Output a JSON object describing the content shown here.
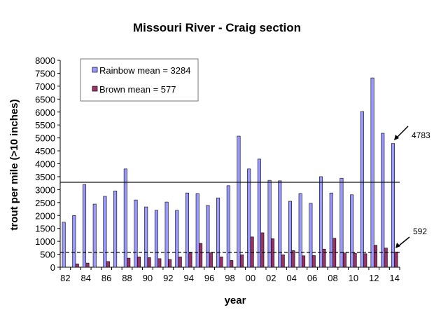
{
  "chart_data": {
    "type": "bar",
    "title": "Missouri River - Craig section",
    "xlabel": "year",
    "ylabel": "trout per mile (>10 inches)",
    "ylim": [
      0,
      8000
    ],
    "yticks": [
      0,
      500,
      1000,
      1500,
      2000,
      2500,
      3000,
      3500,
      4000,
      4500,
      5000,
      5500,
      6000,
      6500,
      7000,
      7500,
      8000
    ],
    "categories": [
      "82",
      "83",
      "84",
      "85",
      "86",
      "87",
      "88",
      "89",
      "90",
      "91",
      "92",
      "93",
      "94",
      "95",
      "96",
      "97",
      "98",
      "99",
      "00",
      "01",
      "02",
      "03",
      "04",
      "05",
      "06",
      "07",
      "08",
      "09",
      "10",
      "11",
      "12",
      "13",
      "14"
    ],
    "xtick_labels": [
      "82",
      "84",
      "86",
      "88",
      "90",
      "92",
      "94",
      "96",
      "98",
      "00",
      "02",
      "04",
      "06",
      "08",
      "10",
      "12",
      "14"
    ],
    "series": [
      {
        "name": "Rainbow",
        "color": "#9999ff",
        "values": [
          1740,
          2000,
          3200,
          2440,
          2740,
          2950,
          3800,
          2600,
          2330,
          2200,
          2520,
          2200,
          2870,
          2850,
          2390,
          2680,
          3150,
          5070,
          3800,
          4180,
          3360,
          3340,
          2550,
          2850,
          2470,
          3500,
          2870,
          3440,
          2800,
          6020,
          7320,
          5180,
          4783
        ]
      },
      {
        "name": "Brown",
        "color": "#993366",
        "values": [
          0,
          130,
          160,
          0,
          220,
          0,
          350,
          400,
          370,
          330,
          300,
          400,
          550,
          920,
          560,
          400,
          260,
          480,
          1170,
          1330,
          1100,
          480,
          640,
          440,
          450,
          700,
          1120,
          550,
          540,
          520,
          850,
          740,
          592
        ]
      }
    ],
    "reference_lines": [
      {
        "value": 3284,
        "style": "solid"
      },
      {
        "value": 577,
        "style": "dashed"
      }
    ],
    "legend": {
      "placement": "top-left",
      "entries": [
        "Rainbow mean = 3284",
        "Brown mean = 577"
      ]
    },
    "annotations": [
      {
        "text": "4783",
        "target": "Rainbow 14"
      },
      {
        "text": "592",
        "target": "Brown 14"
      }
    ],
    "grid": false
  }
}
